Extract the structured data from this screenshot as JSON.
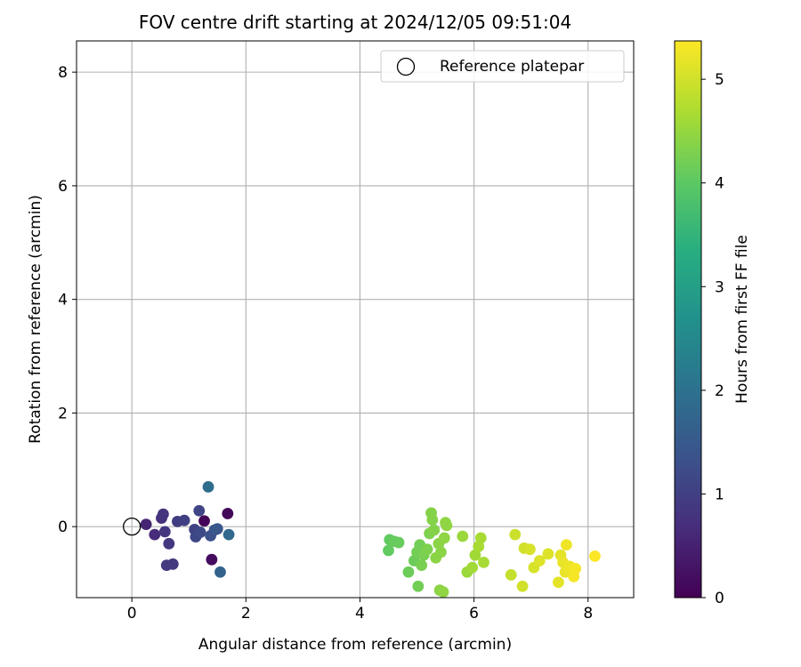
{
  "chart_data": {
    "type": "scatter",
    "title": "FOV centre drift starting at 2024/12/05 09:51:04",
    "xlabel": "Angular distance from reference (arcmin)",
    "ylabel": "Rotation from reference (arcmin)",
    "xlim": [
      -0.97,
      8.8
    ],
    "ylim": [
      -1.25,
      8.55
    ],
    "xticks": [
      "0",
      "2",
      "4",
      "6",
      "8"
    ],
    "yticks": [
      "0",
      "2",
      "4",
      "6",
      "8"
    ],
    "grid": true,
    "legend": {
      "placement": "top-right",
      "entries": [
        "Reference platepar"
      ]
    },
    "colorbar": {
      "label": "Hours from first FF file",
      "range": [
        0,
        5.37
      ],
      "ticks": [
        "0",
        "1",
        "2",
        "3",
        "4",
        "5"
      ],
      "colormap": "viridis"
    },
    "reference_point": {
      "x": 0,
      "y": 0,
      "marker": "open-circle",
      "color": "#000000"
    },
    "series": [
      {
        "points": [
          {
            "x": 1.27,
            "y": 0.1,
            "c": 0.05
          },
          {
            "x": 1.68,
            "y": 0.23,
            "c": 0.1
          },
          {
            "x": 1.4,
            "y": -0.58,
            "c": 0.15
          },
          {
            "x": 0.25,
            "y": 0.04,
            "c": 0.55
          },
          {
            "x": 0.4,
            "y": -0.14,
            "c": 0.65
          },
          {
            "x": 0.52,
            "y": 0.15,
            "c": 0.75
          },
          {
            "x": 0.55,
            "y": 0.22,
            "c": 0.8
          },
          {
            "x": 0.58,
            "y": -0.09,
            "c": 0.85
          },
          {
            "x": 0.65,
            "y": -0.3,
            "c": 0.85
          },
          {
            "x": 0.61,
            "y": -0.68,
            "c": 0.9
          },
          {
            "x": 0.72,
            "y": -0.66,
            "c": 0.9
          },
          {
            "x": 0.8,
            "y": 0.09,
            "c": 0.95
          },
          {
            "x": 0.92,
            "y": 0.11,
            "c": 1.0
          },
          {
            "x": 1.1,
            "y": -0.05,
            "c": 1.05
          },
          {
            "x": 1.18,
            "y": 0.28,
            "c": 1.1
          },
          {
            "x": 1.12,
            "y": -0.18,
            "c": 1.15
          },
          {
            "x": 1.2,
            "y": -0.1,
            "c": 1.2
          },
          {
            "x": 1.38,
            "y": -0.16,
            "c": 1.3
          },
          {
            "x": 1.45,
            "y": -0.06,
            "c": 1.4
          },
          {
            "x": 1.5,
            "y": -0.04,
            "c": 1.45
          },
          {
            "x": 1.55,
            "y": -0.8,
            "c": 1.7
          },
          {
            "x": 1.7,
            "y": -0.14,
            "c": 1.8
          },
          {
            "x": 1.34,
            "y": 0.7,
            "c": 1.9
          },
          {
            "x": 4.5,
            "y": -0.42,
            "c": 4.05
          },
          {
            "x": 4.52,
            "y": -0.23,
            "c": 4.05
          },
          {
            "x": 4.6,
            "y": -0.26,
            "c": 4.1
          },
          {
            "x": 4.68,
            "y": -0.28,
            "c": 4.1
          },
          {
            "x": 4.85,
            "y": -0.8,
            "c": 4.15
          },
          {
            "x": 4.95,
            "y": -0.6,
            "c": 4.15
          },
          {
            "x": 5.0,
            "y": -0.45,
            "c": 4.2
          },
          {
            "x": 5.05,
            "y": -0.32,
            "c": 4.2
          },
          {
            "x": 5.08,
            "y": -0.68,
            "c": 4.25
          },
          {
            "x": 5.12,
            "y": -0.5,
            "c": 4.25
          },
          {
            "x": 5.02,
            "y": -1.05,
            "c": 4.2
          },
          {
            "x": 5.18,
            "y": -0.4,
            "c": 4.3
          },
          {
            "x": 5.22,
            "y": -0.12,
            "c": 4.3
          },
          {
            "x": 5.25,
            "y": 0.24,
            "c": 4.35
          },
          {
            "x": 5.27,
            "y": 0.12,
            "c": 4.35
          },
          {
            "x": 5.3,
            "y": -0.06,
            "c": 4.35
          },
          {
            "x": 5.33,
            "y": -0.55,
            "c": 4.4
          },
          {
            "x": 5.38,
            "y": -0.3,
            "c": 4.4
          },
          {
            "x": 5.42,
            "y": -0.45,
            "c": 4.4
          },
          {
            "x": 5.4,
            "y": -1.12,
            "c": 4.4
          },
          {
            "x": 5.46,
            "y": -1.15,
            "c": 4.45
          },
          {
            "x": 5.48,
            "y": -0.2,
            "c": 4.45
          },
          {
            "x": 5.52,
            "y": 0.02,
            "c": 4.45
          },
          {
            "x": 5.5,
            "y": 0.07,
            "c": 4.45
          },
          {
            "x": 5.8,
            "y": -0.17,
            "c": 4.55
          },
          {
            "x": 5.88,
            "y": -0.8,
            "c": 4.55
          },
          {
            "x": 5.97,
            "y": -0.72,
            "c": 4.6
          },
          {
            "x": 6.02,
            "y": -0.5,
            "c": 4.6
          },
          {
            "x": 6.08,
            "y": -0.35,
            "c": 4.65
          },
          {
            "x": 6.12,
            "y": -0.2,
            "c": 4.65
          },
          {
            "x": 6.17,
            "y": -0.63,
            "c": 4.65
          },
          {
            "x": 6.65,
            "y": -0.85,
            "c": 4.9
          },
          {
            "x": 6.72,
            "y": -0.14,
            "c": 4.95
          },
          {
            "x": 6.85,
            "y": -1.05,
            "c": 5.0
          },
          {
            "x": 6.88,
            "y": -0.38,
            "c": 5.0
          },
          {
            "x": 6.98,
            "y": -0.4,
            "c": 5.05
          },
          {
            "x": 7.05,
            "y": -0.72,
            "c": 5.05
          },
          {
            "x": 7.15,
            "y": -0.6,
            "c": 5.1
          },
          {
            "x": 7.3,
            "y": -0.48,
            "c": 5.1
          },
          {
            "x": 7.48,
            "y": -0.98,
            "c": 5.15
          },
          {
            "x": 7.52,
            "y": -0.5,
            "c": 5.15
          },
          {
            "x": 7.56,
            "y": -0.63,
            "c": 5.2
          },
          {
            "x": 7.6,
            "y": -0.8,
            "c": 5.2
          },
          {
            "x": 7.62,
            "y": -0.32,
            "c": 5.25
          },
          {
            "x": 7.68,
            "y": -0.7,
            "c": 5.25
          },
          {
            "x": 7.75,
            "y": -0.88,
            "c": 5.3
          },
          {
            "x": 7.78,
            "y": -0.74,
            "c": 5.3
          },
          {
            "x": 8.12,
            "y": -0.52,
            "c": 5.35
          }
        ]
      }
    ]
  }
}
